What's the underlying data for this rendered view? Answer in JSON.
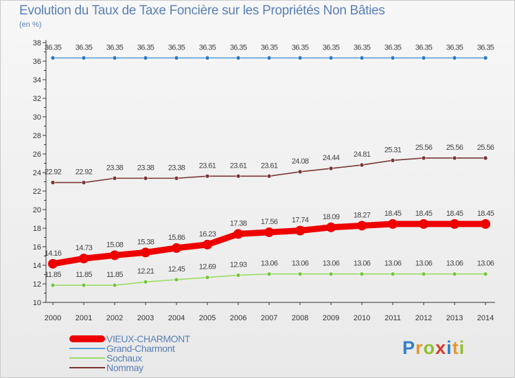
{
  "title": "Evolution du Taux de Taxe Foncière sur les Propriétés Non Bâties",
  "unit": "(en %)",
  "logo": {
    "text": "Proxiti",
    "colors": [
      "#2f7fc8",
      "#e9962a",
      "#8fbe2f",
      "#d83a2a",
      "#2f7fc8",
      "#e9962a",
      "#8fbe2f"
    ]
  },
  "chart_data": {
    "type": "line",
    "title": "Evolution du Taux de Taxe Foncière sur les Propriétés Non Bâties",
    "ylabel": "(en %)",
    "xlabel": "",
    "ylim": [
      10,
      38
    ],
    "yticks": [
      10,
      12,
      14,
      16,
      18,
      20,
      22,
      24,
      26,
      28,
      30,
      32,
      34,
      36,
      38
    ],
    "x": [
      "2000",
      "2001",
      "2002",
      "2003",
      "2004",
      "2005",
      "2006",
      "2007",
      "2008",
      "2009",
      "2010",
      "2011",
      "2012",
      "2013",
      "2014"
    ],
    "grid": false,
    "legend_position": "bottom-left",
    "series": [
      {
        "name": "VIEUX-CHARMONT",
        "color": "#ee0000",
        "style": "thick",
        "values": [
          14.16,
          14.73,
          15.08,
          15.38,
          15.86,
          16.23,
          17.38,
          17.56,
          17.74,
          18.09,
          18.27,
          18.45,
          18.45,
          18.45,
          18.45
        ],
        "labels": [
          "14.16",
          "14.73",
          "15.08",
          "15.38",
          "15.86",
          "16.23",
          "17.38",
          "17.56",
          "17.74",
          "18.09",
          "18.27",
          "18.45",
          "18.45",
          "18.45",
          "18.45"
        ]
      },
      {
        "name": "Grand-Charmont",
        "color": "#5da0d8",
        "marker": "#2e78bd",
        "values": [
          36.35,
          36.35,
          36.35,
          36.35,
          36.35,
          36.35,
          36.35,
          36.35,
          36.35,
          36.35,
          36.35,
          36.35,
          36.35,
          36.35,
          36.35
        ],
        "labels": [
          "36.35",
          "36.35",
          "36.35",
          "36.35",
          "36.35",
          "36.35",
          "36.35",
          "36.35",
          "36.35",
          "36.35",
          "36.35",
          "36.35",
          "36.35",
          "36.35",
          "36.35"
        ]
      },
      {
        "name": "Sochaux",
        "color": "#99dd66",
        "marker": "#77c43a",
        "values": [
          11.85,
          11.85,
          11.85,
          12.21,
          12.45,
          12.69,
          12.93,
          13.06,
          13.06,
          13.06,
          13.06,
          13.06,
          13.06,
          13.06,
          13.06
        ],
        "labels": [
          "11.85",
          "11.85",
          "11.85",
          "12.21",
          "12.45",
          "12.69",
          "12.93",
          "13.06",
          "13.06",
          "13.06",
          "13.06",
          "13.06",
          "13.06",
          "13.06",
          "13.06"
        ]
      },
      {
        "name": "Nommay",
        "color": "#7a3535",
        "marker": "#7a3535",
        "values": [
          22.92,
          22.92,
          23.38,
          23.38,
          23.38,
          23.61,
          23.61,
          23.61,
          24.08,
          24.44,
          24.81,
          25.31,
          25.56,
          25.56,
          25.56
        ],
        "labels": [
          "22.92",
          "22.92",
          "23.38",
          "23.38",
          "23.38",
          "23.61",
          "23.61",
          "23.61",
          "24.08",
          "24.44",
          "24.81",
          "25.31",
          "25.56",
          "25.56",
          "25.56"
        ]
      }
    ]
  }
}
